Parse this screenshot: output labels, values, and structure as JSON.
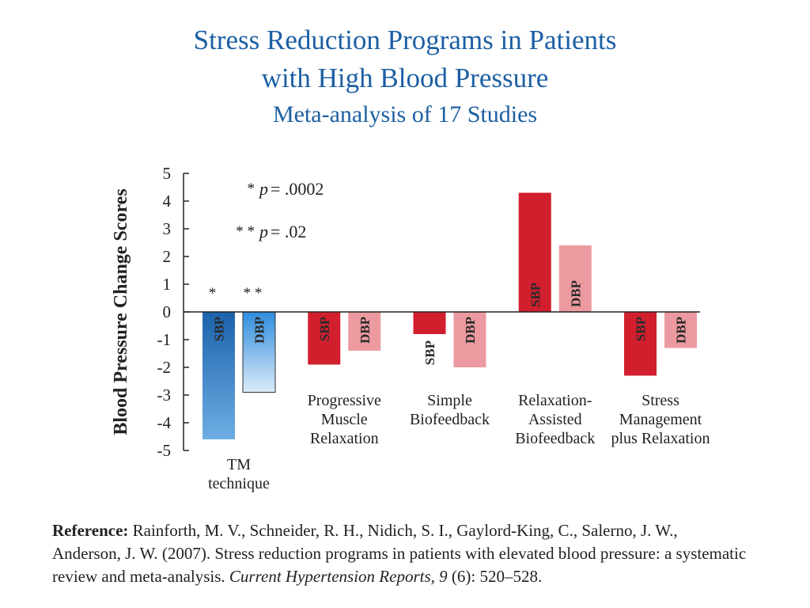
{
  "chart_data": {
    "type": "bar",
    "title": [
      "Stress Reduction Programs in Patients",
      "with High Blood Pressure"
    ],
    "subtitle": "Meta-analysis of 17 Studies",
    "ylabel": "Blood Pressure Change Scores",
    "categories": [
      [
        "TM",
        "technique"
      ],
      [
        "Progressive",
        "Muscle",
        "Relaxation"
      ],
      [
        "Simple",
        "Biofeedback"
      ],
      [
        "Relaxation-",
        "Assisted",
        "Biofeedback"
      ],
      [
        "Stress",
        "Management",
        "plus Relaxation"
      ]
    ],
    "series": [
      {
        "name": "SBP",
        "values": [
          -4.6,
          -1.9,
          -0.8,
          4.3,
          -2.3
        ],
        "colors": [
          [
            "#1b62ab",
            "#6eaee4"
          ],
          "#d21f2e",
          "#d21f2e",
          "#d21f2e",
          "#d21f2e"
        ]
      },
      {
        "name": "DBP",
        "values": [
          -2.9,
          -1.4,
          -2.0,
          2.4,
          -1.3
        ],
        "colors": [
          [
            "#2f8ddd",
            "#dbeaf8"
          ],
          "#ec9aa0",
          "#ec9aa0",
          "#ec9aa0",
          "#ec9aa0"
        ]
      }
    ],
    "significance": [
      {
        "symbol": "*",
        "variable": "p",
        "text": "= .0002"
      },
      {
        "symbol": "* *",
        "variable": "p",
        "text": "= .02"
      }
    ],
    "ylim": [
      -5,
      5
    ],
    "yticks": [
      -5,
      -4,
      -3,
      -2,
      -1,
      0,
      1,
      2,
      3,
      4,
      5
    ]
  },
  "reference": {
    "label": "Reference:",
    "text": "Rainforth, M. V., Schneider, R. H., Nidich, S. I., Gaylord-King, C., Salerno, J. W., Anderson, J. W. (2007). Stress reduction programs in patients with elevated blood pressure: a systematic review and meta-analysis.",
    "journal": "Current Hypertension Reports, 9",
    "tail": "(6): 520–528."
  }
}
